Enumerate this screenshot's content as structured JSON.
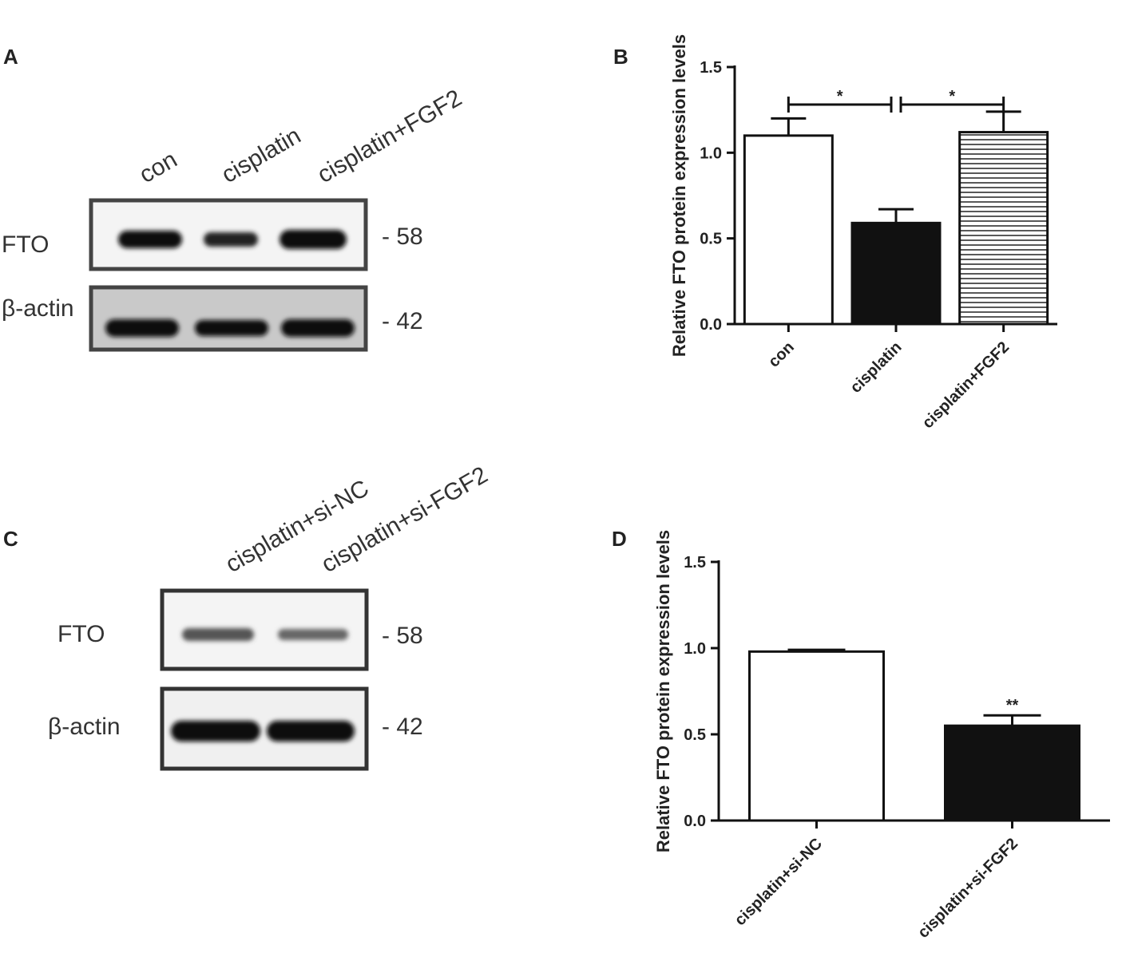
{
  "panels": {
    "a": "A",
    "b": "B",
    "c": "C",
    "d": "D"
  },
  "blot_a": {
    "lanes": [
      "con",
      "cisplatin",
      "cisplatin+FGF2"
    ],
    "rows": [
      {
        "label": "FTO",
        "mw": "- 58",
        "band_intensity": [
          1.0,
          0.7,
          1.05
        ]
      },
      {
        "label": "β-actin",
        "mw": "- 42",
        "band_intensity": [
          1.0,
          1.0,
          1.0
        ]
      }
    ]
  },
  "blot_c": {
    "lanes": [
      "cisplatin+si-NC",
      "cisplatin+si-FGF2"
    ],
    "rows": [
      {
        "label": "FTO",
        "mw": "- 58",
        "band_intensity": [
          0.45,
          0.35
        ]
      },
      {
        "label": "β-actin",
        "mw": "- 42",
        "band_intensity": [
          1.0,
          1.0
        ]
      }
    ]
  },
  "chart_data": [
    {
      "type": "bar",
      "panel": "B",
      "categories": [
        "con",
        "cisplatin",
        "cisplatin+FGF2"
      ],
      "values": [
        1.1,
        0.59,
        1.12
      ],
      "errors": [
        0.1,
        0.08,
        0.12
      ],
      "fills": [
        "white",
        "black",
        "hlines"
      ],
      "ylabel": "Relative FTO protein expression levels",
      "ylim": [
        0,
        1.5
      ],
      "yticks": [
        "0.0",
        "0.5",
        "1.0",
        "1.5"
      ],
      "significance": [
        {
          "from": 0,
          "to": 1,
          "label": "*"
        },
        {
          "from": 1,
          "to": 2,
          "label": "*"
        }
      ]
    },
    {
      "type": "bar",
      "panel": "D",
      "categories": [
        "cisplatin+si-NC",
        "cisplatin+si-FGF2"
      ],
      "values": [
        0.98,
        0.55
      ],
      "errors": [
        0.01,
        0.06
      ],
      "fills": [
        "white",
        "black"
      ],
      "ylabel": "Relative FTO protein expression levels",
      "ylim": [
        0,
        1.5
      ],
      "yticks": [
        "0.0",
        "0.5",
        "1.0",
        "1.5"
      ],
      "annotations": [
        {
          "bar": 1,
          "label": "**"
        }
      ]
    }
  ]
}
